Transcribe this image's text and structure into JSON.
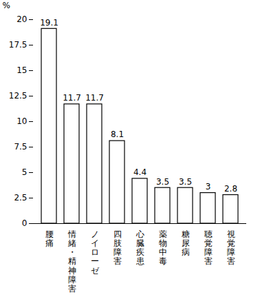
{
  "chart_data": {
    "type": "bar",
    "y_label": "%",
    "categories": [
      "腰痛",
      "情緒・精神障害",
      "ノイローゼ",
      "四肢障害",
      "心臓疾患",
      "薬物中毒",
      "糖尿病",
      "聴覚障害",
      "視覚障害"
    ],
    "values": [
      19.1,
      11.7,
      11.7,
      8.1,
      4.4,
      3.5,
      3.5,
      3,
      2.8
    ],
    "color": "#ffffff",
    "ylim": [
      0,
      20
    ],
    "yticks": [
      0,
      2.5,
      5,
      7.5,
      10,
      12.5,
      15,
      17.5,
      20
    ],
    "data_labels": true,
    "grid": false
  }
}
